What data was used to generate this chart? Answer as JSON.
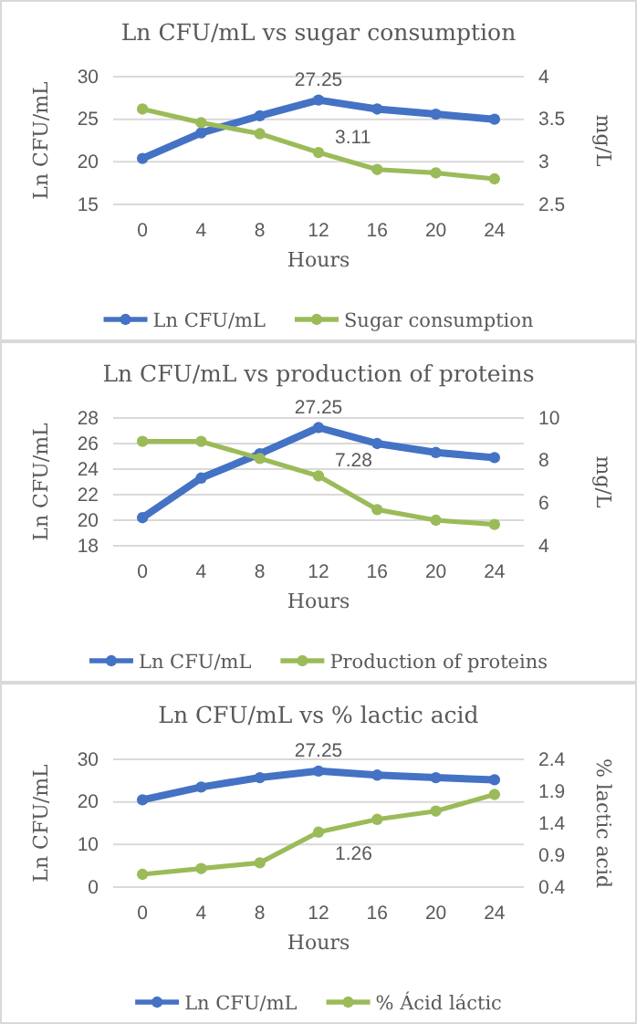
{
  "chart_data": [
    {
      "type": "line",
      "title": "Ln CFU/mL vs sugar consumption",
      "xlabel": "Hours",
      "ylabel": "Ln CFU/mL",
      "y2label": "mg/L",
      "categories": [
        "0",
        "4",
        "8",
        "12",
        "16",
        "20",
        "24"
      ],
      "ylim": [
        15,
        30
      ],
      "yticks": [
        15,
        20,
        25,
        30
      ],
      "y2lim": [
        2.5,
        4
      ],
      "y2ticks": [
        2.5,
        3,
        3.5,
        4
      ],
      "grid": "y",
      "legend": "bottom",
      "marker": "circle",
      "series": [
        {
          "name": "Ln CFU/mL",
          "color": "#4472c4",
          "values": [
            20.4,
            23.4,
            25.4,
            27.25,
            26.2,
            25.6,
            25.0
          ],
          "value_labels": [
            null,
            null,
            null,
            "27.25",
            null,
            null,
            null
          ]
        },
        {
          "name": "Sugar consumption",
          "color": "#9bbb59",
          "axis": "y2",
          "values": [
            3.62,
            3.46,
            3.33,
            3.11,
            2.91,
            2.87,
            2.8
          ],
          "value_labels": [
            null,
            null,
            null,
            "3.11",
            null,
            null,
            null
          ]
        }
      ]
    },
    {
      "type": "line",
      "title": "Ln CFU/mL vs production of proteins",
      "xlabel": "Hours",
      "ylabel": "Ln CFU/mL",
      "y2label": "mg/L",
      "categories": [
        "0",
        "4",
        "8",
        "12",
        "16",
        "20",
        "24"
      ],
      "ylim": [
        18,
        28
      ],
      "yticks": [
        18,
        20,
        22,
        24,
        26,
        28
      ],
      "y2lim": [
        4,
        10
      ],
      "y2ticks": [
        4,
        6,
        8,
        10
      ],
      "grid": "y",
      "legend": "bottom",
      "marker": "circle",
      "series": [
        {
          "name": "Ln CFU/mL",
          "color": "#4472c4",
          "values": [
            20.2,
            23.3,
            25.2,
            27.25,
            26.0,
            25.3,
            24.9
          ],
          "value_labels": [
            null,
            null,
            null,
            "27.25",
            null,
            null,
            null
          ]
        },
        {
          "name": "Production of proteins",
          "color": "#9bbb59",
          "axis": "y2",
          "values": [
            8.9,
            8.9,
            8.1,
            7.28,
            5.7,
            5.2,
            5.0
          ],
          "value_labels": [
            null,
            null,
            null,
            "7.28",
            null,
            null,
            null
          ]
        }
      ]
    },
    {
      "type": "line",
      "title": "Ln CFU/mL vs % lactic acid",
      "xlabel": "Hours",
      "ylabel": "Ln CFU/mL",
      "y2label": "% lactic acid",
      "categories": [
        "0",
        "4",
        "8",
        "12",
        "16",
        "20",
        "24"
      ],
      "ylim": [
        0,
        30
      ],
      "yticks": [
        0,
        10,
        20,
        30
      ],
      "y2lim": [
        0.4,
        2.4
      ],
      "y2ticks": [
        0.4,
        0.9,
        1.4,
        1.9,
        2.4
      ],
      "grid": "y",
      "legend": "bottom",
      "marker": "circle",
      "series": [
        {
          "name": "Ln CFU/mL",
          "color": "#4472c4",
          "values": [
            20.5,
            23.5,
            25.7,
            27.25,
            26.3,
            25.7,
            25.2
          ],
          "value_labels": [
            null,
            null,
            null,
            "27.25",
            null,
            null,
            null
          ]
        },
        {
          "name": "% Ácid láctic",
          "color": "#9bbb59",
          "axis": "y2",
          "values": [
            0.6,
            0.69,
            0.78,
            1.26,
            1.46,
            1.59,
            1.85
          ],
          "value_labels": [
            null,
            null,
            null,
            "1.26",
            null,
            null,
            null
          ]
        }
      ]
    }
  ]
}
